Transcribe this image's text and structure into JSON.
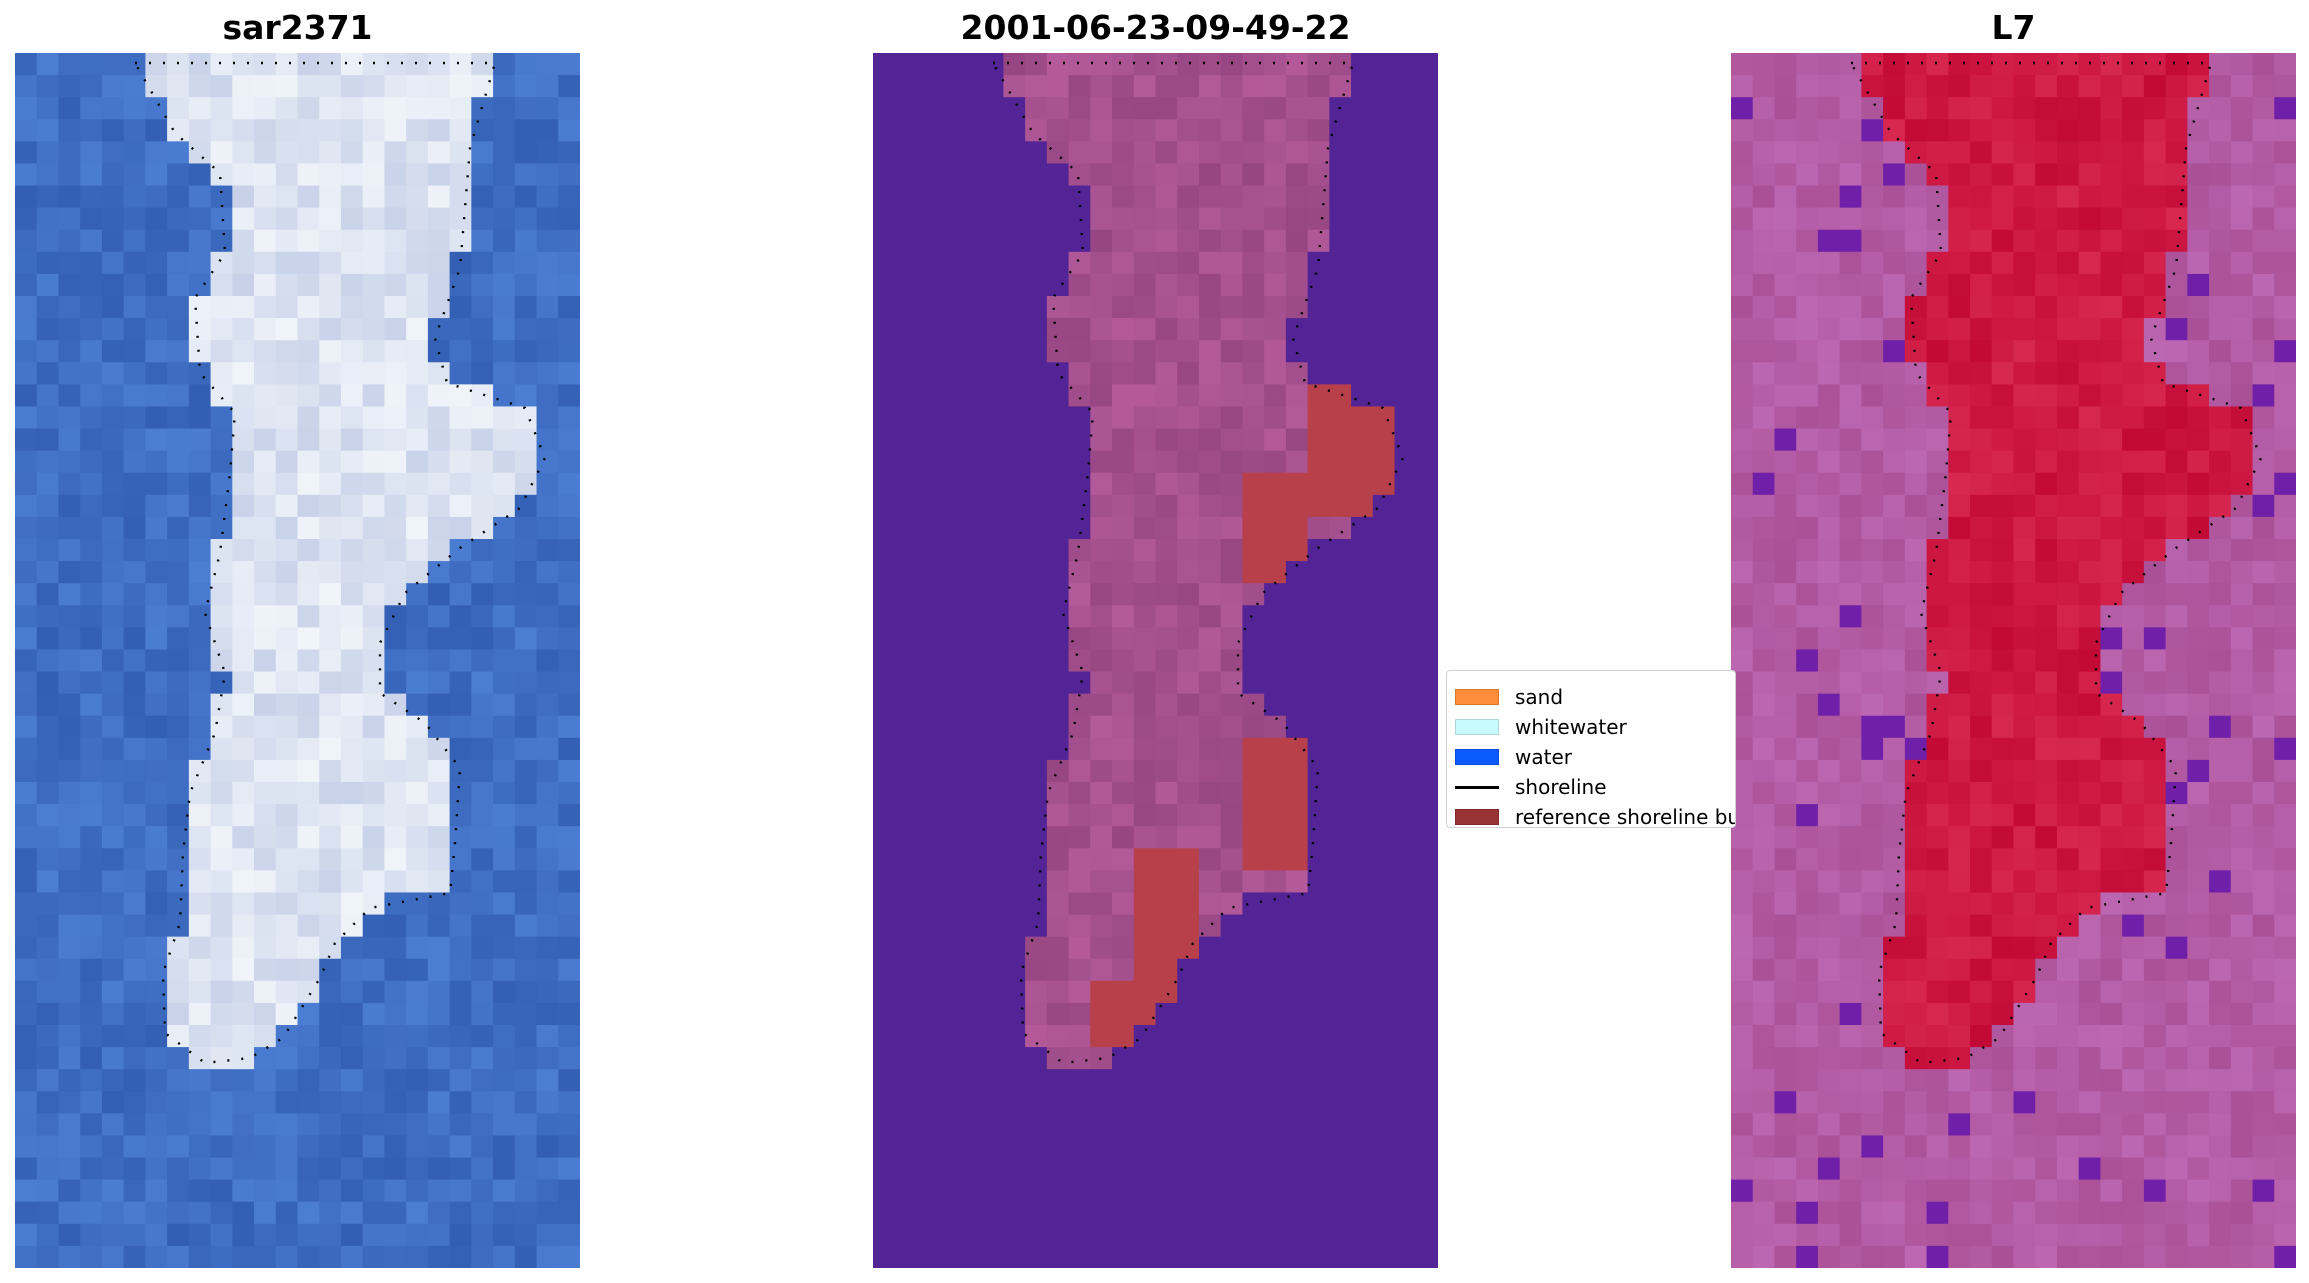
{
  "panels": [
    {
      "title": "sar2371",
      "style": "rgb"
    },
    {
      "title": "2001-06-23-09-49-22",
      "style": "classified"
    },
    {
      "title": "L7",
      "style": "index"
    }
  ],
  "legend": {
    "items": [
      {
        "label": "sand",
        "color": "#ff8c3a",
        "kind": "patch"
      },
      {
        "label": "whitewater",
        "color": "#c8fcfc",
        "kind": "patch"
      },
      {
        "label": "water",
        "color": "#0a5cff",
        "kind": "patch"
      },
      {
        "label": "shoreline",
        "color": "#000000",
        "kind": "line"
      },
      {
        "label": "reference shoreline buffer",
        "color": "#993333",
        "kind": "patch"
      }
    ]
  },
  "colors": {
    "rgb_water": "#3b68b8",
    "rgb_sand_light": "#e8ecf8",
    "class_water": "#522496",
    "class_land": "#a04e8c",
    "class_buffer": "#b8404a",
    "index_background": "#b05a9a",
    "index_land": "#c80c3e",
    "index_purple": "#7020a8"
  }
}
